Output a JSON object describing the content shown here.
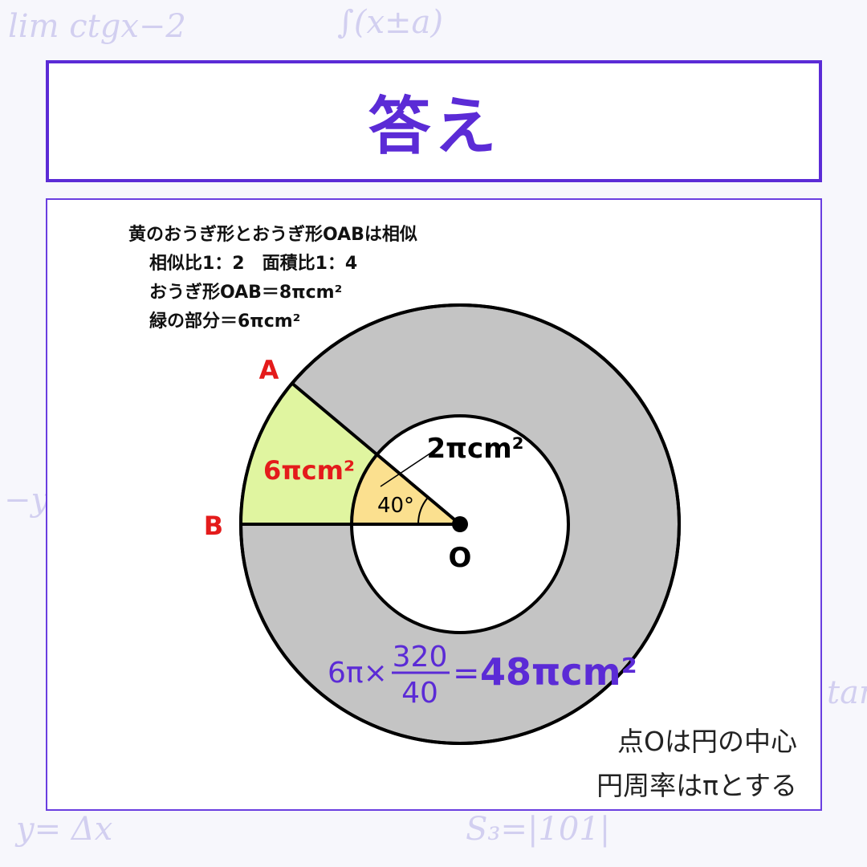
{
  "title": "答え",
  "notes": [
    "黄のおうぎ形とおうぎ形OABは相似",
    "相似比1：2　面積比1：4",
    "おうぎ形OAB＝8πcm²",
    "緑の部分＝6πcm²"
  ],
  "figure": {
    "point_a": "A",
    "point_b": "B",
    "point_o": "O",
    "angle_label": "40°",
    "green_area": "6πcm²",
    "yellow_area": "2πcm²",
    "formula": {
      "left": "6π×",
      "numerator": "320",
      "denominator": "40",
      "eq": "=",
      "result": "48πcm²"
    },
    "angle_deg": 40,
    "colors": {
      "green": "#e0f5a0",
      "yellow": "#fbe08f",
      "gray": "#c4c4c4",
      "accent": "#5b2bd6",
      "red": "#e41b1b"
    }
  },
  "footer": [
    "点Oは円の中心",
    "円周率はπとする"
  ]
}
